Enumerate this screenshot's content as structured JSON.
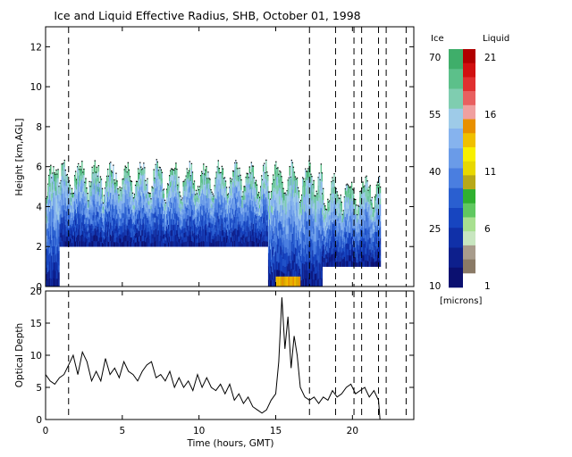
{
  "title": "Ice and Liquid Effective Radius, SHB, October 01, 1998",
  "colorbar": {
    "ice_header": "Ice",
    "liquid_header": "Liquid",
    "units": "[microns]",
    "ice_ticks": [
      "70",
      "55",
      "40",
      "25",
      "10"
    ],
    "liquid_ticks": [
      "21",
      "16",
      "11",
      "6",
      "1"
    ],
    "ice_colors": [
      "#0b1070",
      "#0d1f8c",
      "#1030a8",
      "#1745c0",
      "#2a5fd0",
      "#4a7ee0",
      "#6a9be8",
      "#86b3ee",
      "#9ecbe8",
      "#7fcdb0",
      "#5cc08a",
      "#3fae6a"
    ],
    "liquid_colors": [
      "#ffffff",
      "#8a7a66",
      "#a89c8c",
      "#c8e6c0",
      "#a8e090",
      "#60c860",
      "#30b030",
      "#b8a818",
      "#e8d800",
      "#f8f000",
      "#f0c000",
      "#e89000",
      "#f0a0a0",
      "#e86060",
      "#e03030",
      "#d01010",
      "#b00000"
    ]
  },
  "chart_data": [
    {
      "type": "heatmap",
      "title": "Ice and Liquid Effective Radius, SHB, October 01, 1998",
      "ylabel": "Height [km,AGL]",
      "xlabel": "",
      "xlim": [
        0,
        24
      ],
      "ylim": [
        0,
        13
      ],
      "y_ticks": [
        0,
        2,
        4,
        6,
        8,
        10,
        12
      ],
      "x_ticks": [
        0,
        5,
        10,
        15,
        20
      ],
      "dashed_lines_hours": [
        1.5,
        17.2,
        18.9,
        20.1,
        20.6,
        21.7,
        22.2,
        23.5
      ],
      "cloud_segments": [
        {
          "x_start": 0.0,
          "x_end": 0.9,
          "base": 0.0,
          "top": 6.0,
          "phase": "ice"
        },
        {
          "x_start": 0.9,
          "x_end": 14.5,
          "base": 2.0,
          "top": 6.0,
          "phase": "ice"
        },
        {
          "x_start": 14.5,
          "x_end": 18.0,
          "base": 0.0,
          "top": 6.0,
          "phase": "ice"
        },
        {
          "x_start": 18.0,
          "x_end": 21.8,
          "base": 1.0,
          "top": 5.3,
          "phase": "ice"
        },
        {
          "x_start": 15.0,
          "x_end": 16.6,
          "base": 0.0,
          "top": 0.5,
          "phase": "liquid"
        }
      ]
    },
    {
      "type": "line",
      "xlabel": "Time (hours, GMT)",
      "ylabel": "Optical Depth",
      "xlim": [
        0,
        24
      ],
      "ylim": [
        0,
        20
      ],
      "y_ticks": [
        0,
        5,
        10,
        15,
        20
      ],
      "x_ticks": [
        0,
        5,
        10,
        15,
        20
      ],
      "dashed_lines_hours": [
        1.5,
        17.2,
        18.9,
        20.1,
        20.6,
        21.7,
        22.2,
        23.5
      ],
      "x": [
        0.0,
        0.3,
        0.6,
        0.9,
        1.2,
        1.5,
        1.8,
        2.1,
        2.4,
        2.7,
        3.0,
        3.3,
        3.6,
        3.9,
        4.2,
        4.5,
        4.8,
        5.1,
        5.4,
        5.7,
        6.0,
        6.3,
        6.6,
        6.9,
        7.2,
        7.5,
        7.8,
        8.1,
        8.4,
        8.7,
        9.0,
        9.3,
        9.6,
        9.9,
        10.2,
        10.5,
        10.8,
        11.1,
        11.4,
        11.7,
        12.0,
        12.3,
        12.6,
        12.9,
        13.2,
        13.5,
        13.8,
        14.1,
        14.4,
        14.7,
        15.0,
        15.2,
        15.4,
        15.6,
        15.8,
        16.0,
        16.2,
        16.4,
        16.6,
        16.9,
        17.2,
        17.5,
        17.8,
        18.1,
        18.4,
        18.7,
        19.0,
        19.3,
        19.6,
        19.9,
        20.2,
        20.5,
        20.8,
        21.1,
        21.4,
        21.7,
        21.8
      ],
      "values": [
        7,
        6,
        5.5,
        6.5,
        7,
        8.5,
        10,
        7,
        10.5,
        9,
        6,
        7.5,
        6,
        9.5,
        7,
        8,
        6.5,
        9,
        7.5,
        7,
        6,
        7.5,
        8.5,
        9,
        6.5,
        7,
        6,
        7.5,
        5,
        6.5,
        5,
        6,
        4.5,
        7,
        5,
        6.5,
        5,
        4.5,
        5.5,
        4,
        5.5,
        3,
        4,
        2.5,
        3.5,
        2,
        1.5,
        1,
        1.5,
        3,
        4,
        9,
        19,
        11,
        16,
        8,
        13,
        10,
        5,
        3.5,
        3,
        3.5,
        2.5,
        3.5,
        3,
        4.5,
        3.5,
        4,
        5,
        5.5,
        4,
        4.5,
        5,
        3.5,
        4.5,
        3,
        0
      ]
    }
  ]
}
